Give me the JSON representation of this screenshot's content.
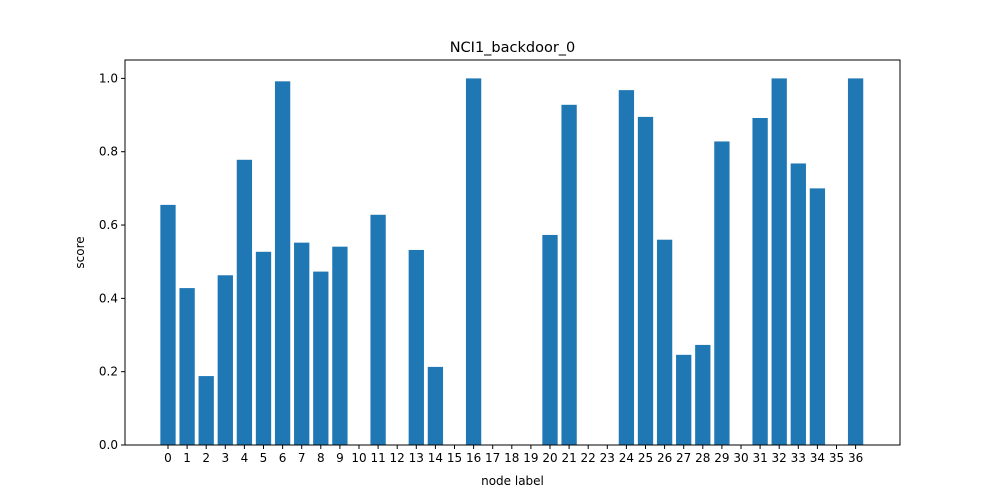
{
  "chart_data": {
    "type": "bar",
    "title": "NCI1_backdoor_0",
    "xlabel": "node label",
    "ylabel": "score",
    "categories": [
      "0",
      "1",
      "2",
      "3",
      "4",
      "5",
      "6",
      "7",
      "8",
      "9",
      "10",
      "11",
      "12",
      "13",
      "14",
      "15",
      "16",
      "17",
      "18",
      "19",
      "20",
      "21",
      "22",
      "23",
      "24",
      "25",
      "26",
      "27",
      "28",
      "29",
      "30",
      "31",
      "32",
      "33",
      "34",
      "35",
      "36"
    ],
    "values": [
      0.655,
      0.428,
      0.188,
      0.463,
      0.778,
      0.527,
      0.992,
      0.552,
      0.473,
      0.541,
      0.0,
      0.628,
      0.0,
      0.532,
      0.213,
      0.0,
      1.0,
      0.0,
      0.0,
      0.0,
      0.573,
      0.928,
      0.0,
      0.0,
      0.968,
      0.895,
      0.56,
      0.246,
      0.273,
      0.828,
      0.0,
      0.892,
      1.0,
      0.768,
      0.7,
      0.0,
      1.0
    ],
    "ylim": [
      0.0,
      1.0
    ],
    "yticks": [
      "0.0",
      "0.2",
      "0.4",
      "0.6",
      "0.8",
      "1.0"
    ],
    "bar_color": "#1f77b4",
    "grid": false,
    "legend": "none"
  }
}
